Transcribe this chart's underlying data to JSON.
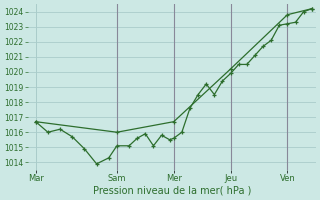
{
  "xlabel": "Pression niveau de la mer( hPa )",
  "ylim": [
    1013.5,
    1024.5
  ],
  "yticks": [
    1014,
    1015,
    1016,
    1017,
    1018,
    1019,
    1020,
    1021,
    1022,
    1023,
    1024
  ],
  "bg_color": "#cce8e4",
  "grid_color": "#aaccca",
  "line_color": "#2d6e2d",
  "vline_color": "#888899",
  "xtick_labels": [
    "Mar",
    "Sam",
    "Mer",
    "Jeu",
    "Ven"
  ],
  "xtick_positions": [
    0,
    40,
    68,
    96,
    124
  ],
  "xlim": [
    -4,
    138
  ],
  "series1_x": [
    0,
    6,
    12,
    18,
    24,
    30,
    36,
    40,
    46,
    50,
    54,
    58,
    62,
    66,
    68,
    72,
    76,
    80,
    84,
    88,
    92,
    96,
    100,
    104,
    108,
    112,
    116,
    120,
    124,
    128,
    132,
    136
  ],
  "series1_y": [
    1016.7,
    1016.0,
    1016.2,
    1015.7,
    1014.9,
    1013.9,
    1014.3,
    1015.1,
    1015.1,
    1015.6,
    1015.9,
    1015.1,
    1015.8,
    1015.5,
    1015.6,
    1016.0,
    1017.6,
    1018.5,
    1019.2,
    1018.5,
    1019.4,
    1019.9,
    1020.5,
    1020.5,
    1021.1,
    1021.7,
    1022.1,
    1023.1,
    1023.2,
    1023.3,
    1024.0,
    1024.2
  ],
  "series2_x": [
    0,
    40,
    68,
    96,
    124,
    136
  ],
  "series2_y": [
    1016.7,
    1016.0,
    1016.7,
    1020.2,
    1023.8,
    1024.2
  ],
  "vlines_x": [
    40,
    68,
    96,
    124
  ]
}
